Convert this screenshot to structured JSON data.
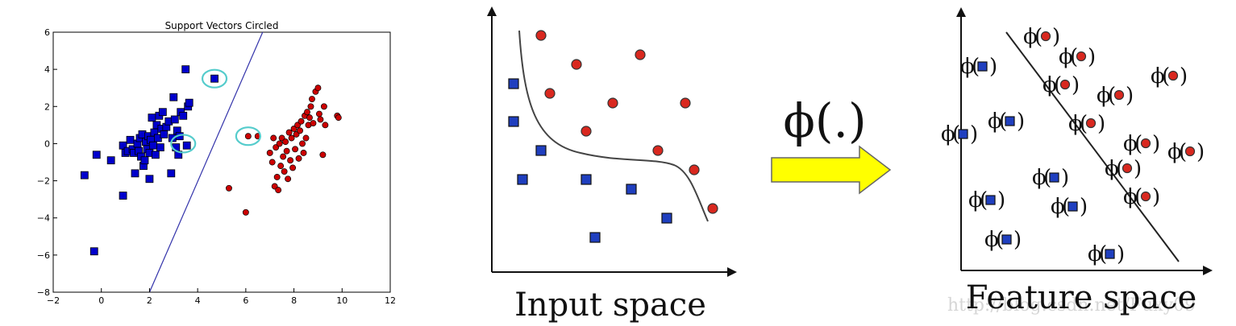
{
  "chart_data": {
    "type": "scatter",
    "title": "Support Vectors Circled",
    "xlim": [
      -2,
      12
    ],
    "ylim": [
      -8,
      6
    ],
    "x_ticks": [
      -2,
      0,
      2,
      4,
      6,
      8,
      10,
      12
    ],
    "y_ticks": [
      -8,
      -6,
      -4,
      -2,
      0,
      2,
      4,
      6
    ],
    "grid": false,
    "series": [
      {
        "marker": "square",
        "color": "#0000cc",
        "points": [
          [
            -0.7,
            -1.7
          ],
          [
            -0.3,
            -5.8
          ],
          [
            -0.2,
            -0.6
          ],
          [
            0.4,
            -0.9
          ],
          [
            0.9,
            -2.8
          ],
          [
            0.9,
            -0.1
          ],
          [
            1.0,
            -0.5
          ],
          [
            1.1,
            -0.4
          ],
          [
            1.2,
            0.2
          ],
          [
            1.3,
            -0.3
          ],
          [
            1.35,
            -0.5
          ],
          [
            1.4,
            -1.6
          ],
          [
            1.5,
            0.0
          ],
          [
            1.55,
            -0.4
          ],
          [
            1.6,
            0.3
          ],
          [
            1.65,
            -0.7
          ],
          [
            1.7,
            0.5
          ],
          [
            1.75,
            -1.2
          ],
          [
            1.8,
            -0.9
          ],
          [
            1.85,
            0.1
          ],
          [
            1.9,
            -0.3
          ],
          [
            1.95,
            0.4
          ],
          [
            2.0,
            -0.5
          ],
          [
            2.0,
            -1.9
          ],
          [
            2.05,
            0.2
          ],
          [
            2.1,
            1.4
          ],
          [
            2.15,
            -0.1
          ],
          [
            2.2,
            0.6
          ],
          [
            2.25,
            -0.6
          ],
          [
            2.3,
            1.0
          ],
          [
            2.35,
            0.3
          ],
          [
            2.4,
            1.5
          ],
          [
            2.45,
            -0.2
          ],
          [
            2.5,
            0.8
          ],
          [
            2.55,
            1.7
          ],
          [
            2.6,
            0.5
          ],
          [
            2.7,
            0.9
          ],
          [
            2.8,
            1.2
          ],
          [
            2.9,
            -1.6
          ],
          [
            2.95,
            0.3
          ],
          [
            3.0,
            2.5
          ],
          [
            3.05,
            1.3
          ],
          [
            3.1,
            -0.2
          ],
          [
            3.15,
            0.7
          ],
          [
            3.2,
            -0.6
          ],
          [
            3.25,
            0.4
          ],
          [
            3.3,
            1.7
          ],
          [
            3.4,
            1.5
          ],
          [
            3.5,
            4.0
          ],
          [
            3.55,
            -0.1
          ],
          [
            3.6,
            2.0
          ],
          [
            3.65,
            2.2
          ],
          [
            4.7,
            3.5
          ]
        ]
      },
      {
        "marker": "circle",
        "color": "#cc0000",
        "points": [
          [
            5.3,
            -2.4
          ],
          [
            6.0,
            -3.7
          ],
          [
            6.1,
            0.4
          ],
          [
            6.5,
            0.4
          ],
          [
            7.0,
            -0.5
          ],
          [
            7.1,
            -1.0
          ],
          [
            7.15,
            0.3
          ],
          [
            7.2,
            -2.3
          ],
          [
            7.25,
            -0.2
          ],
          [
            7.3,
            -1.8
          ],
          [
            7.35,
            -2.5
          ],
          [
            7.4,
            0.0
          ],
          [
            7.45,
            -1.2
          ],
          [
            7.5,
            0.3
          ],
          [
            7.55,
            -0.7
          ],
          [
            7.6,
            -1.5
          ],
          [
            7.65,
            0.1
          ],
          [
            7.7,
            -0.4
          ],
          [
            7.75,
            -1.9
          ],
          [
            7.8,
            0.6
          ],
          [
            7.85,
            -0.9
          ],
          [
            7.9,
            0.3
          ],
          [
            7.95,
            -1.3
          ],
          [
            8.0,
            0.8
          ],
          [
            8.05,
            -0.3
          ],
          [
            8.1,
            0.5
          ],
          [
            8.15,
            1.0
          ],
          [
            8.2,
            -0.8
          ],
          [
            8.25,
            0.7
          ],
          [
            8.3,
            1.2
          ],
          [
            8.35,
            0.0
          ],
          [
            8.4,
            -0.5
          ],
          [
            8.45,
            1.5
          ],
          [
            8.5,
            0.3
          ],
          [
            8.55,
            1.7
          ],
          [
            8.6,
            1.0
          ],
          [
            8.65,
            1.4
          ],
          [
            8.7,
            2.0
          ],
          [
            8.75,
            2.4
          ],
          [
            8.8,
            1.1
          ],
          [
            8.9,
            2.8
          ],
          [
            9.0,
            3.0
          ],
          [
            9.05,
            1.6
          ],
          [
            9.1,
            1.3
          ],
          [
            9.2,
            -0.6
          ],
          [
            9.25,
            2.0
          ],
          [
            9.3,
            1.0
          ],
          [
            9.8,
            1.5
          ],
          [
            9.85,
            1.4
          ]
        ]
      }
    ],
    "support_vectors": [
      [
        4.7,
        3.5
      ],
      [
        3.4,
        0.0
      ],
      [
        6.1,
        0.4
      ]
    ],
    "separator": [
      [
        2.0,
        -8.0
      ],
      [
        6.7,
        6.0
      ]
    ]
  },
  "input_space": {
    "label": "Input space",
    "squares": [
      [
        637,
        104
      ],
      [
        637,
        151
      ],
      [
        671,
        187
      ],
      [
        648,
        223
      ],
      [
        727,
        223
      ],
      [
        783,
        235
      ],
      [
        827,
        271
      ],
      [
        738,
        295
      ]
    ],
    "circles": [
      [
        671,
        44
      ],
      [
        715,
        80
      ],
      [
        794,
        68
      ],
      [
        682,
        116
      ],
      [
        760,
        128
      ],
      [
        850,
        128
      ],
      [
        727,
        163
      ],
      [
        816,
        187
      ],
      [
        861,
        211
      ],
      [
        884,
        259
      ]
    ]
  },
  "mapping": {
    "label": "ϕ(.)",
    "arrow_color": "#ffff00"
  },
  "feature_space": {
    "label": "Feature space",
    "phi_symbol": "ϕ",
    "squares": [
      [
        1218,
        82
      ],
      [
        1194,
        166
      ],
      [
        1252,
        150
      ],
      [
        1307,
        220
      ],
      [
        1228,
        248
      ],
      [
        1330,
        256
      ],
      [
        1248,
        297
      ],
      [
        1376,
        315
      ]
    ],
    "circles": [
      [
        1296,
        45
      ],
      [
        1340,
        70
      ],
      [
        1320,
        105
      ],
      [
        1387,
        118
      ],
      [
        1352,
        153
      ],
      [
        1454,
        94
      ],
      [
        1420,
        178
      ],
      [
        1475,
        188
      ],
      [
        1397,
        209
      ],
      [
        1420,
        244
      ]
    ],
    "watermark": "http://blog.csdn.net/Fuxy09"
  }
}
